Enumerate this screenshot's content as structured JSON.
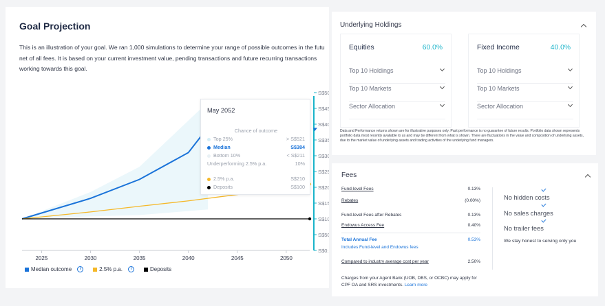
{
  "goal": {
    "title": "Goal Projection",
    "desc_lines": [
      "This is an illustration of your goal. We ran 1,000 simulations to determine your range of possible outcomes in the futu",
      "net of all fees. It is based on your current investment value, pending transactions and future recurring transactions",
      "working towards this goal."
    ],
    "legend": {
      "median": "Median outcome",
      "pa": "2.5% p.a.",
      "deposits": "Deposits"
    },
    "tooltip": {
      "title": "May 2052",
      "chance": "Chance of outcome",
      "rows": [
        {
          "label": "Top 25%",
          "value": "> S$521"
        },
        {
          "label": "Median",
          "value": "S$384"
        },
        {
          "label": "Bottom 10%",
          "value": "< S$211"
        },
        {
          "label": "Underperforming 2.5% p.a.",
          "value": "10%"
        },
        {
          "label": "2.5% p.a.",
          "value": "S$210"
        },
        {
          "label": "Deposits",
          "value": "S$100"
        }
      ]
    }
  },
  "chart_data": {
    "type": "line",
    "x_ticks": [
      2025,
      2030,
      2035,
      2040,
      2045,
      2050
    ],
    "xlim": [
      2023,
      2052.4
    ],
    "y_ticks": [
      "S$0.0",
      "S$50.0",
      "S$100",
      "S$150",
      "S$200",
      "S$250",
      "S$300",
      "S$350",
      "S$400",
      "S$450",
      "S$50"
    ],
    "ylim": [
      0,
      500
    ],
    "series": [
      {
        "name": "Median outcome",
        "color": "#1a73d9",
        "x": [
          2023,
          2030,
          2035,
          2040,
          2042
        ],
        "y": [
          100,
          165,
          225,
          310,
          390
        ]
      },
      {
        "name": "2.5% p.a.",
        "color": "#f5b829",
        "x": [
          2023,
          2030,
          2035,
          2040,
          2045,
          2050,
          2052.4
        ],
        "y": [
          100,
          122,
          140,
          157,
          177,
          198,
          210
        ]
      },
      {
        "name": "Deposits",
        "color": "#000000",
        "x": [
          2023,
          2052.4
        ],
        "y": [
          100,
          100
        ]
      }
    ],
    "band": {
      "x": [
        2023,
        2030,
        2035,
        2042
      ],
      "upper": [
        100,
        185,
        265,
        470
      ],
      "lower": [
        100,
        108,
        112,
        130
      ]
    },
    "markers": [
      {
        "series": "Median outcome",
        "y": 384
      },
      {
        "series": "2.5% p.a.",
        "y": 210
      },
      {
        "series": "Deposits",
        "y": 100
      }
    ],
    "colors": {
      "accent": "#1a73d9",
      "cursor": "#19b3c9",
      "band": "#e6f5fa"
    }
  },
  "holdings": {
    "title": "Underlying Holdings",
    "equities": {
      "label": "Equities",
      "pct": "60.0%",
      "items": [
        "Top 10 Holdings",
        "Top 10 Markets",
        "Sector Allocation"
      ]
    },
    "fixed": {
      "label": "Fixed Income",
      "pct": "40.0%",
      "items": [
        "Top 10 Holdings",
        "Top 10 Markets",
        "Sector Allocation"
      ]
    },
    "disclaimer": "Data and Performance returns shown are for illustrative purposes only. Past performance is no guarantee of future results. Portfolio data shown represents portfolio data most recently available to us and may be different from what is shown. There are fluctuations in the value and composition of underlying assets, due to the market value of underlying assets and trading activities of the underlying fund managers."
  },
  "fees": {
    "title": "Fees",
    "rows": [
      {
        "label": "Fund-level Fees",
        "value": "0.13%"
      },
      {
        "label": "Rebates",
        "value": "(0.00%)"
      },
      {
        "label": "Fund-level Fees after Rebates",
        "value": "0.13%"
      },
      {
        "label": "Endowus Access Fee",
        "value": "0.40%"
      },
      {
        "label": "Total Annual Fee",
        "value": "0.53%"
      },
      {
        "label": "Includes Fund-level and Endowus fees",
        "value": ""
      },
      {
        "label": "Compared to industry average cost per year",
        "value": "2.50%"
      }
    ],
    "perks": [
      "No hidden costs",
      "No sales charges",
      "No trailer fees"
    ],
    "honest": "We stay honest to serving only you",
    "note": "Charges from your Agent Bank (UOB, DBS, or OCBC) may apply for CPF OA and SRS investments.",
    "learn_more": "Learn more"
  }
}
